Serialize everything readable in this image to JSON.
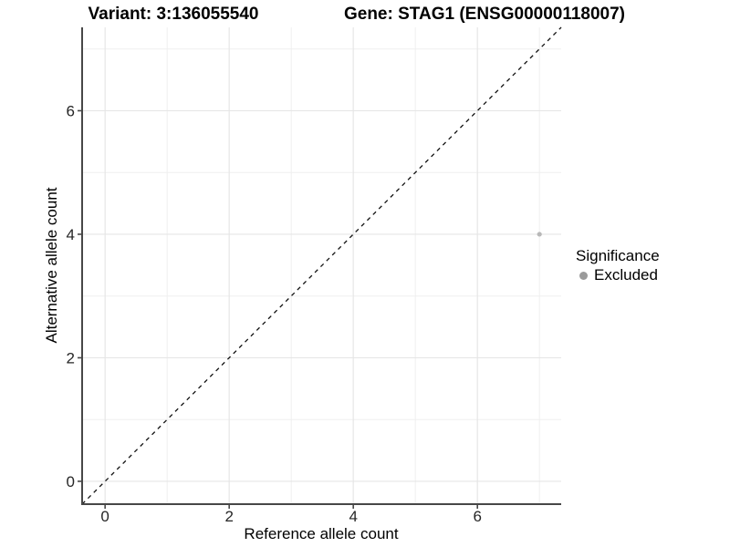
{
  "titles": {
    "variant": "Variant: 3:136055540",
    "gene": "Gene: STAG1 (ENSG00000118007)"
  },
  "chart_data": {
    "type": "scatter",
    "xlabel": "Reference allele count",
    "ylabel": "Alternative allele count",
    "xlim": [
      -0.37,
      7.35
    ],
    "ylim": [
      -0.37,
      7.35
    ],
    "x_major_ticks": [
      0,
      2,
      4,
      6
    ],
    "y_major_ticks": [
      0,
      2,
      4,
      6
    ],
    "x_minor_ticks": [
      1,
      3,
      5,
      7
    ],
    "y_minor_ticks": [
      1,
      3,
      5,
      7
    ],
    "grid": true,
    "series": [
      {
        "name": "Excluded",
        "color": "#b8b8b8",
        "points": [
          {
            "x": 7,
            "y": 4
          }
        ],
        "point_radius": 2.6
      }
    ],
    "reference_line": {
      "type": "identity",
      "style": "dashed",
      "color": "#111111"
    },
    "legend": {
      "position": "right",
      "title": "Significance",
      "items": [
        {
          "label": "Excluded",
          "color": "#9b9b9b"
        }
      ]
    },
    "style": {
      "axis_line_color": "#474747",
      "tick_color": "#474747",
      "tick_label_color": "#262626",
      "major_grid_color": "#e6e6e6",
      "minor_grid_color": "#efefef",
      "panel_background": "#ffffff"
    }
  }
}
